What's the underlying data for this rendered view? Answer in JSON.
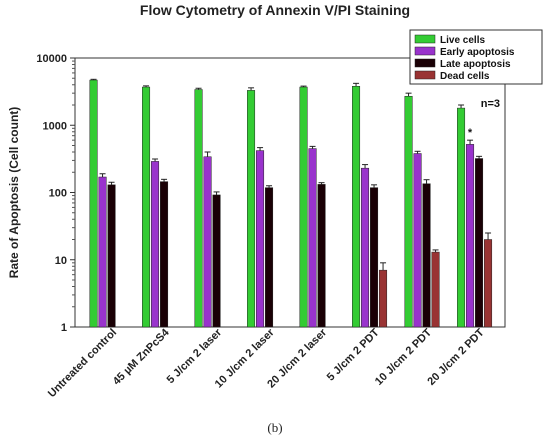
{
  "chart_data": {
    "type": "bar",
    "title": "Flow Cytometry of Annexin V/PI Staining",
    "ylabel": "Rate of Apoptosis (Cell count)",
    "xlabel": "",
    "yscale": "log",
    "ylim": [
      1,
      10000
    ],
    "yticks": [
      "1",
      "10",
      "100",
      "1000",
      "10000"
    ],
    "categories": [
      "Untreated control",
      "45 µM ZnPcS4",
      "5 J/cm 2 laser",
      "10 J/cm 2 laser",
      "20 J/cm 2 laser",
      "5 J/cm 2 PDT",
      "10 J/cm 2 PDT",
      "20 J/cm 2 PDT"
    ],
    "series": [
      {
        "name": "Live cells",
        "color": "#33cc33",
        "values": [
          4700,
          3700,
          3400,
          3300,
          3700,
          3800,
          2700,
          1800
        ],
        "errors": [
          120,
          150,
          150,
          300,
          120,
          400,
          300,
          200
        ]
      },
      {
        "name": "Early apoptosis",
        "color": "#9933cc",
        "values": [
          170,
          290,
          340,
          420,
          450,
          230,
          380,
          520
        ],
        "errors": [
          20,
          25,
          60,
          45,
          35,
          30,
          30,
          80
        ]
      },
      {
        "name": "Late apoptosis",
        "color": "#1a0005",
        "values": [
          130,
          145,
          92,
          118,
          132,
          118,
          135,
          320
        ],
        "errors": [
          12,
          12,
          10,
          8,
          8,
          12,
          20,
          25
        ]
      },
      {
        "name": "Dead cells",
        "color": "#993333",
        "values": [
          null,
          null,
          null,
          null,
          null,
          7,
          13,
          20
        ],
        "errors": [
          null,
          null,
          null,
          null,
          null,
          2,
          1,
          5
        ]
      }
    ],
    "legend_position": "top-right",
    "annotations": [
      {
        "text": "n=3"
      },
      {
        "text": "*",
        "category": "20 J/cm 2 PDT",
        "series": "Early apoptosis"
      }
    ],
    "grid": false
  },
  "caption": "(b)"
}
